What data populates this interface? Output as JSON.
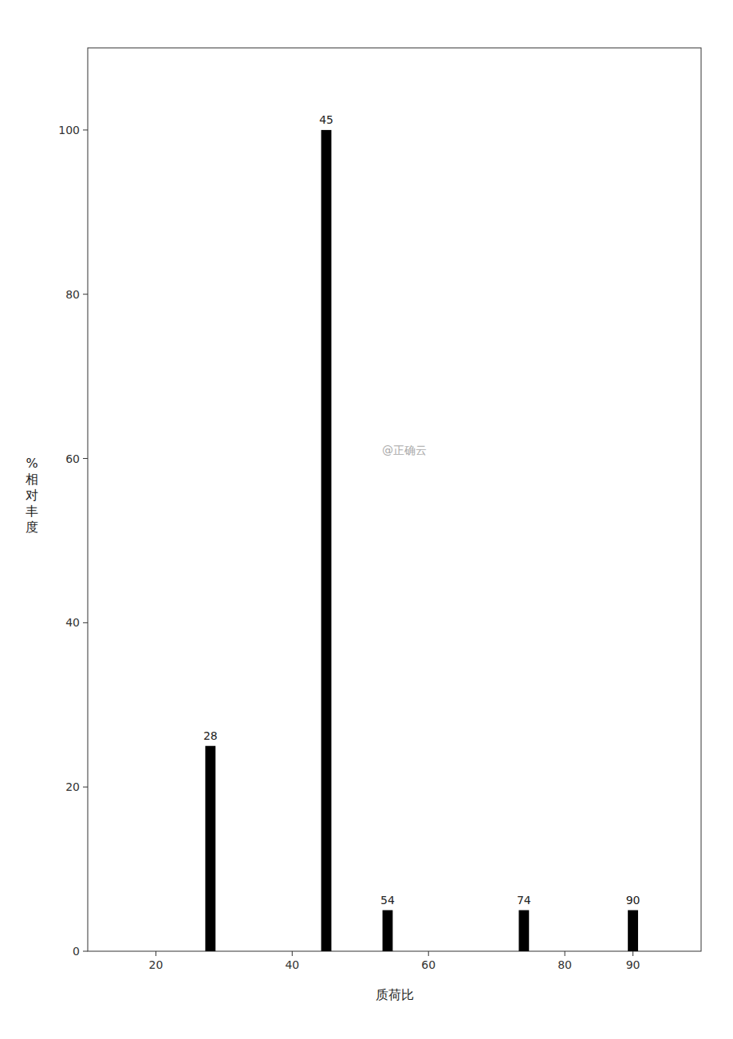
{
  "chart_data": {
    "type": "bar",
    "x": [
      28,
      45,
      54,
      74,
      90
    ],
    "values": [
      25,
      100,
      5,
      5,
      5
    ],
    "bar_labels": [
      "28",
      "45",
      "54",
      "74",
      "90"
    ],
    "color": "#000000",
    "x_label": "质荷比",
    "y_label": "%\n相\n对\n丰\n度",
    "annotations": [
      "@正确云"
    ],
    "xlim": [
      10,
      100
    ],
    "xticks": [
      20,
      40,
      60,
      80,
      90
    ],
    "ylim": [
      0,
      110
    ],
    "yticks": [
      0,
      20,
      40,
      60,
      80,
      100
    ],
    "grid": false
  }
}
